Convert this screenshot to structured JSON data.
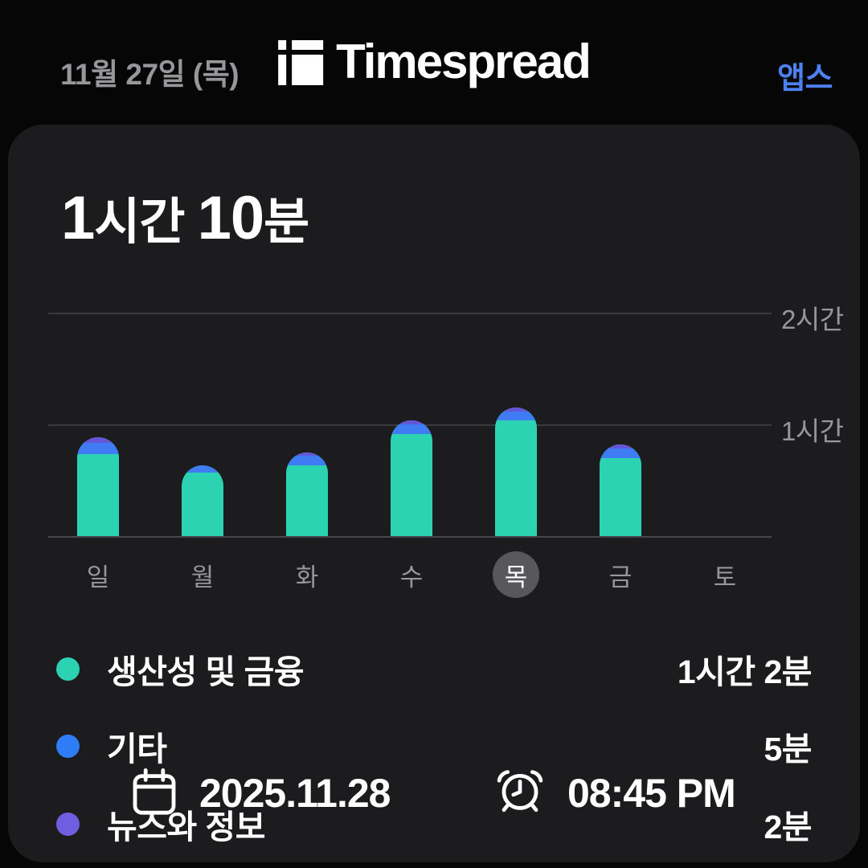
{
  "header": {
    "date": "11월 27일 (목)",
    "app_name": "Timespread",
    "apps_link": "앱스"
  },
  "summary": {
    "total_label": "1시간 10분",
    "title_parts": [
      {
        "text": "1",
        "kind": "num"
      },
      {
        "text": "시간 ",
        "kind": "unit"
      },
      {
        "text": "10",
        "kind": "num"
      },
      {
        "text": "분",
        "kind": "unit"
      }
    ]
  },
  "chart_data": {
    "type": "bar",
    "stacked": true,
    "unit": "minutes",
    "categories": [
      "일",
      "월",
      "화",
      "수",
      "목",
      "금",
      "토"
    ],
    "selected_category": "목",
    "series": [
      {
        "name": "생산성 및 금융",
        "color": "#2cd3b2",
        "values": [
          44,
          34,
          38,
          55,
          62,
          42,
          0
        ]
      },
      {
        "name": "기타",
        "color": "#3f7bf2",
        "values": [
          6,
          4,
          5,
          5,
          5,
          5,
          0
        ]
      },
      {
        "name": "뉴스와 정보",
        "color": "#6456d6",
        "values": [
          3,
          0,
          2,
          2,
          2,
          2,
          0
        ]
      }
    ],
    "y_ticks": [
      {
        "value": 60,
        "label": "1시간"
      },
      {
        "value": 120,
        "label": "2시간"
      }
    ],
    "ylim": [
      0,
      135
    ],
    "grid": "horizontal",
    "tick_label_position": "right"
  },
  "legend": [
    {
      "label": "생산성 및 금융",
      "value": "1시간 2분",
      "color": "#2cd3b2"
    },
    {
      "label": "기타",
      "value": "5분",
      "color": "#2e7cf6"
    },
    {
      "label": "뉴스와 정보",
      "value": "2분",
      "color": "#6f5fe0"
    }
  ],
  "overlay": {
    "date": "2025.11.28",
    "time": "08:45 PM"
  },
  "colors": {
    "page_bg": "#060607",
    "card_bg": "#1c1c1e",
    "text_secondary": "#96969b",
    "link_blue": "#4d80f0",
    "gridline": "#3a3a3c",
    "selected_day_bg": "#58585c"
  }
}
